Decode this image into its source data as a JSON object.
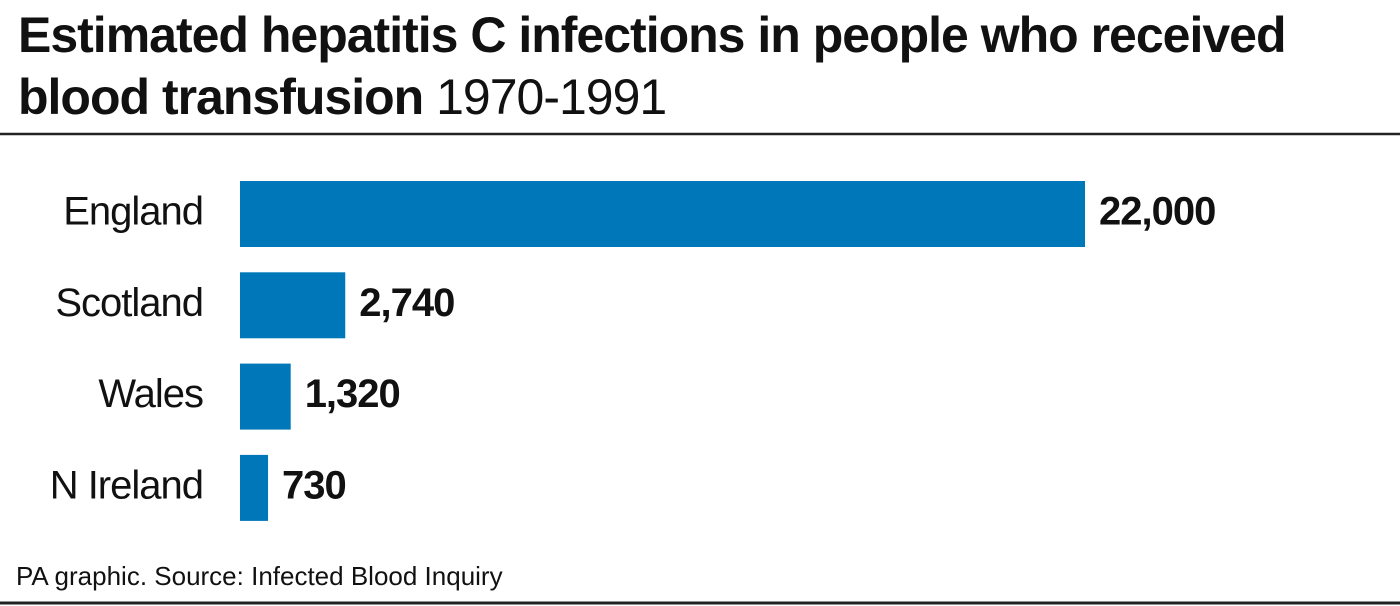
{
  "chart_data": {
    "type": "bar",
    "orientation": "horizontal",
    "title": "Estimated hepatitis C infections in people who received blood transfusion",
    "subtitle": "1970-1991",
    "categories": [
      "England",
      "Scotland",
      "Wales",
      "N Ireland"
    ],
    "values": [
      22000,
      2740,
      1320,
      730
    ],
    "value_labels": [
      "22,000",
      "2,740",
      "1,320",
      "730"
    ],
    "color": "#0077b8",
    "source": "PA graphic. Source: Infected Blood Inquiry"
  }
}
